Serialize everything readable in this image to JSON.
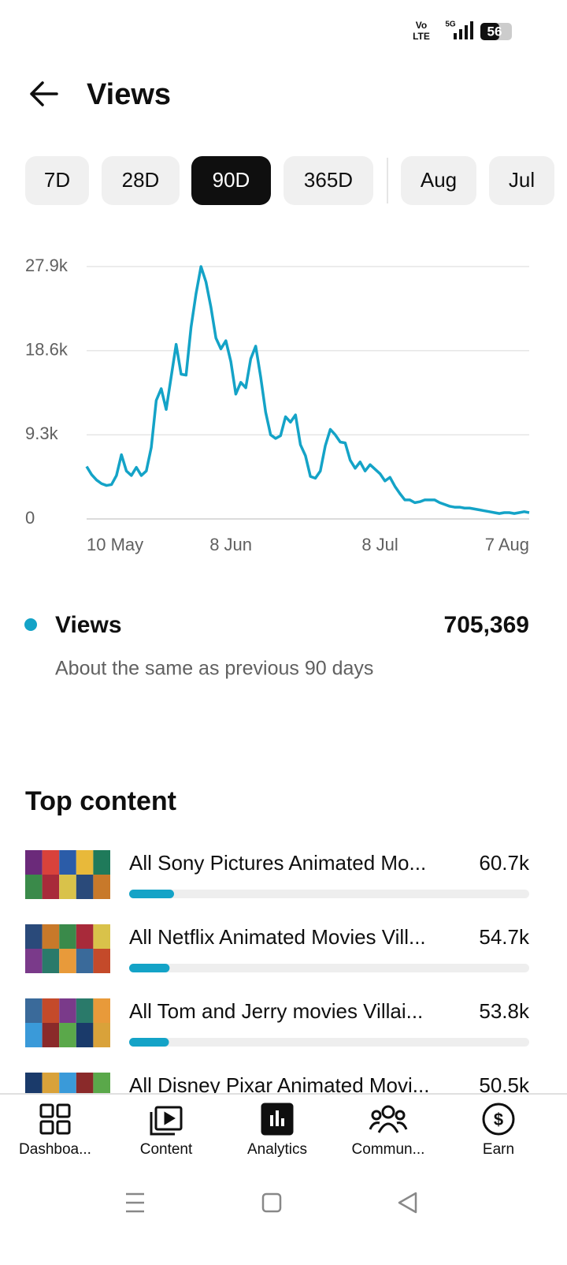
{
  "status_bar": {
    "volte_top": "Vo",
    "volte_bottom": "LTE",
    "network": "5G",
    "battery": "56"
  },
  "header": {
    "title": "Views"
  },
  "tabs": {
    "items": [
      "7D",
      "28D",
      "90D",
      "365D",
      "Aug",
      "Jul"
    ],
    "selected": 2
  },
  "chart_data": {
    "type": "line",
    "categories": [
      "10 May",
      null,
      null,
      null,
      null,
      null,
      null,
      null,
      null,
      null,
      null,
      null,
      null,
      null,
      null,
      null,
      null,
      null,
      null,
      null,
      null,
      null,
      null,
      null,
      null,
      null,
      null,
      null,
      null,
      "8 Jun",
      null,
      null,
      null,
      null,
      null,
      null,
      null,
      null,
      null,
      null,
      null,
      null,
      null,
      null,
      null,
      null,
      null,
      null,
      null,
      null,
      null,
      null,
      null,
      null,
      null,
      null,
      null,
      null,
      null,
      "8 Jul",
      null,
      null,
      null,
      null,
      null,
      null,
      null,
      null,
      null,
      null,
      null,
      null,
      null,
      null,
      null,
      null,
      null,
      null,
      null,
      null,
      null,
      null,
      null,
      null,
      null,
      null,
      null,
      null,
      null,
      "7 Aug"
    ],
    "series": [
      {
        "name": "Views",
        "color": "#14a3c7",
        "values": [
          5800,
          4900,
          4300,
          3900,
          3700,
          3800,
          4800,
          7100,
          5300,
          4800,
          5700,
          4800,
          5300,
          7900,
          13100,
          14400,
          12100,
          15700,
          19300,
          16000,
          15900,
          21200,
          24900,
          27900,
          26200,
          23400,
          20000,
          18800,
          19700,
          17400,
          13800,
          15100,
          14500,
          17700,
          19100,
          15700,
          11800,
          9300,
          8900,
          9200,
          11300,
          10700,
          11500,
          8200,
          7000,
          4700,
          4500,
          5300,
          8100,
          9900,
          9300,
          8500,
          8400,
          6500,
          5600,
          6300,
          5300,
          6000,
          5500,
          5000,
          4200,
          4600,
          3600,
          2800,
          2100,
          2100,
          1800,
          1900,
          2100,
          2100,
          2100,
          1800,
          1600,
          1400,
          1300,
          1300,
          1200,
          1200,
          1100,
          1000,
          900,
          800,
          700,
          600,
          700,
          700,
          600,
          700,
          800,
          700
        ]
      }
    ],
    "ylim": [
      0,
      27900
    ],
    "yticks": [
      0,
      {
        "value": 9300,
        "label": "9.3k"
      },
      {
        "value": 18600,
        "label": "18.6k"
      },
      {
        "value": 27900,
        "label": "27.9k"
      }
    ],
    "grid": true,
    "total": "705,369",
    "note": "About the same as previous 90 days"
  },
  "top_content": {
    "title": "Top content",
    "items": [
      {
        "title": "All Sony Pictures Animated Mo...",
        "value": 60700,
        "value_label": "60.7k"
      },
      {
        "title": "All Netflix Animated Movies Vill...",
        "value": 54700,
        "value_label": "54.7k"
      },
      {
        "title": "All Tom and Jerry movies Villai...",
        "value": 53800,
        "value_label": "53.8k"
      },
      {
        "title": "All Disney Pixar Animated Movi...",
        "value": 50500,
        "value_label": "50.5k"
      }
    ]
  },
  "nav": {
    "items": [
      "Dashboa...",
      "Content",
      "Analytics",
      "Commun...",
      "Earn"
    ],
    "selected": 2
  }
}
